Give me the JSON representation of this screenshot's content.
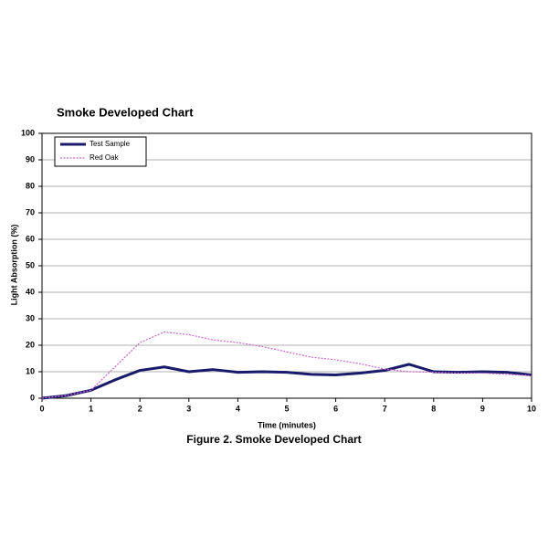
{
  "chart_data": {
    "type": "line",
    "title": "Smoke Developed Chart",
    "caption": "Figure 2.  Smoke Developed Chart",
    "x_label": "Time (minutes)",
    "y_label": "Light Absorption  (%)",
    "x": [
      0,
      0.5,
      1,
      1.5,
      2,
      2.5,
      3,
      3.5,
      4,
      4.5,
      5,
      5.5,
      6,
      6.5,
      7,
      7.5,
      8,
      8.5,
      9,
      9.5,
      10
    ],
    "series": [
      {
        "name": "Test Sample",
        "color": "#1a1a6b",
        "values": [
          0,
          1,
          3,
          7,
          10.5,
          11.8,
          10,
          10.8,
          9.8,
          10,
          9.8,
          9,
          8.8,
          9.5,
          10.5,
          12.8,
          10,
          9.8,
          10,
          9.8,
          8.8
        ]
      },
      {
        "name": "Red Oak",
        "color": "#cc66cc",
        "values": [
          0,
          1,
          3,
          12,
          21,
          25,
          24,
          22,
          21,
          19.5,
          17.5,
          15.5,
          14.5,
          13,
          11,
          10,
          9.8,
          9.5,
          9.5,
          9,
          8.5
        ]
      }
    ],
    "xlim": [
      0,
      10
    ],
    "xticks": [
      0,
      1,
      2,
      3,
      4,
      5,
      6,
      7,
      8,
      9,
      10
    ],
    "ylim": [
      0,
      100
    ],
    "yticks": [
      0,
      10,
      20,
      30,
      40,
      50,
      60,
      70,
      80,
      90,
      100
    ],
    "grid": true,
    "legend": "upper-left"
  }
}
